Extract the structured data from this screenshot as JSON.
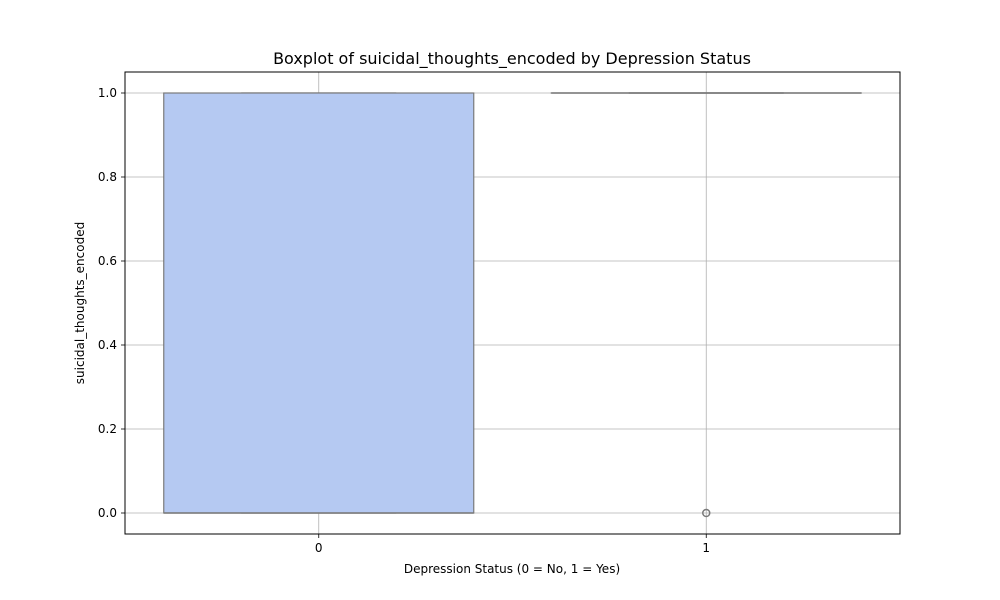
{
  "chart_data": {
    "type": "boxplot",
    "title": "Boxplot of suicidal_thoughts_encoded by Depression Status",
    "xlabel": "Depression Status (0 = No, 1 = Yes)",
    "ylabel": "suicidal_thoughts_encoded",
    "categories": [
      "0",
      "1"
    ],
    "yticks": [
      "0.0",
      "0.2",
      "0.4",
      "0.6",
      "0.8",
      "1.0"
    ],
    "ylim": [
      -0.05,
      1.05
    ],
    "grid": true,
    "boxes": [
      {
        "category": "0",
        "q1": 0.0,
        "median": 0.0,
        "q3": 1.0,
        "whisker_low": 0.0,
        "whisker_high": 1.0,
        "fliers": []
      },
      {
        "category": "1",
        "q1": 1.0,
        "median": 1.0,
        "q3": 1.0,
        "whisker_low": 1.0,
        "whisker_high": 1.0,
        "fliers": [
          0.0
        ]
      }
    ],
    "colors": {
      "box0": "#b5c9f2",
      "box1": "#f2b7a0",
      "edge": "#7a7a7a",
      "grid": "#b0b0b0"
    }
  }
}
